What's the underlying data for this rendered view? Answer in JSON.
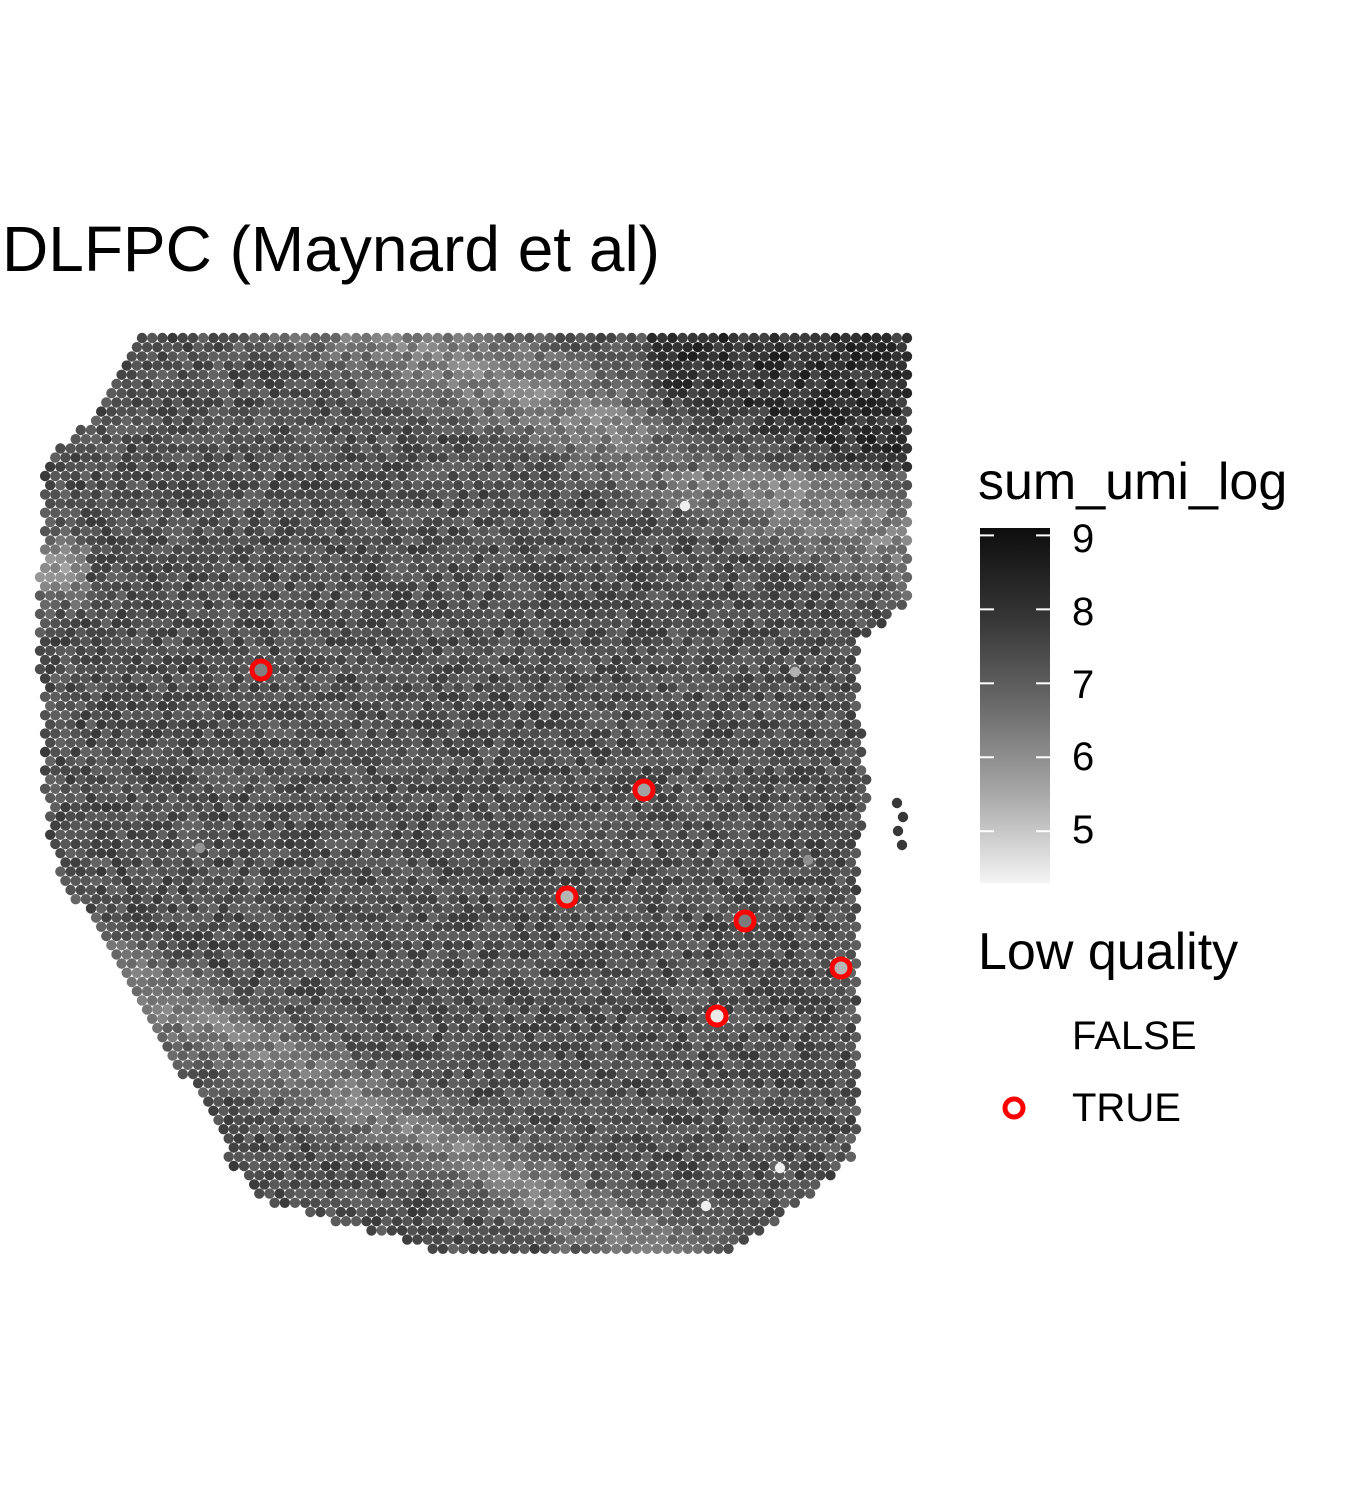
{
  "chart_data": {
    "type": "scatter",
    "title": "DLFPC (Maynard et al)",
    "xlabel": "",
    "ylabel": "",
    "grid": false,
    "legend_position": "right",
    "color_scale": {
      "title": "sum_umi_log",
      "ticks": [
        "9",
        "8",
        "7",
        "6",
        "5"
      ],
      "tick_values": [
        9,
        8,
        7,
        6,
        5
      ],
      "range": [
        4.3,
        9.1
      ],
      "low_color": "#f2f2f2",
      "high_color": "#0d0d0d"
    },
    "outline_legend": {
      "title": "Low quality",
      "items": [
        {
          "label": "FALSE",
          "outline": "none"
        },
        {
          "label": "TRUE",
          "outline": "#ff0000"
        }
      ]
    },
    "low_quality_spots": [
      {
        "x": 261,
        "y": 670,
        "sum_umi_log": 6.7
      },
      {
        "x": 644,
        "y": 790,
        "sum_umi_log": 6.0
      },
      {
        "x": 567,
        "y": 897,
        "sum_umi_log": 5.6
      },
      {
        "x": 745,
        "y": 921,
        "sum_umi_log": 6.8
      },
      {
        "x": 841,
        "y": 968,
        "sum_umi_log": 5.6
      },
      {
        "x": 717,
        "y": 1016,
        "sum_umi_log": 4.5
      }
    ],
    "accent_color": "#ff0000"
  }
}
